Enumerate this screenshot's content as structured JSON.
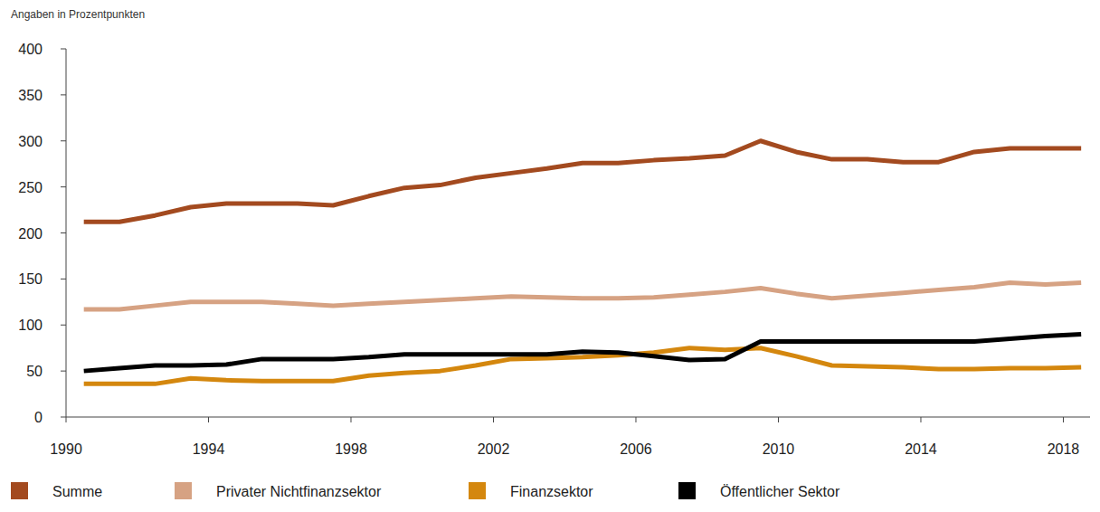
{
  "chart_data": {
    "type": "line",
    "y_label": "Angaben in Prozentpunkten",
    "x": [
      1990.5,
      1991.5,
      1992.5,
      1993.5,
      1994.5,
      1995.5,
      1996.5,
      1997.5,
      1998.5,
      1999.5,
      2000.5,
      2001.5,
      2002.5,
      2003.5,
      2004.5,
      2005.5,
      2006.5,
      2007.5,
      2008.5,
      2009.5,
      2010.5,
      2011.5,
      2012.5,
      2013.5,
      2014.5,
      2015.5,
      2016.5,
      2017.5,
      2018.5
    ],
    "series": [
      {
        "name": "Summe",
        "color": "#a34a1f",
        "values": [
          212,
          212,
          219,
          228,
          232,
          232,
          232,
          230,
          240,
          249,
          252,
          260,
          265,
          270,
          276,
          276,
          279,
          281,
          284,
          300,
          288,
          280,
          280,
          277,
          277,
          288,
          292,
          292,
          292
        ]
      },
      {
        "name": "Privater Nichtfinanzsektor",
        "color": "#d6a283",
        "values": [
          117,
          117,
          121,
          125,
          125,
          125,
          123,
          121,
          123,
          125,
          127,
          129,
          131,
          130,
          129,
          129,
          130,
          133,
          136,
          140,
          134,
          129,
          132,
          135,
          138,
          141,
          146,
          144,
          146
        ]
      },
      {
        "name": "Finanzsektor",
        "color": "#d4870e",
        "values": [
          36,
          36,
          36,
          42,
          40,
          39,
          39,
          39,
          45,
          48,
          50,
          56,
          63,
          64,
          65,
          67,
          70,
          75,
          73,
          75,
          66,
          56,
          55,
          54,
          52,
          52,
          53,
          53,
          54
        ]
      },
      {
        "name": "Öffentlicher Sektor",
        "color": "#000000",
        "values": [
          50,
          53,
          56,
          56,
          57,
          63,
          63,
          63,
          65,
          68,
          68,
          68,
          68,
          68,
          71,
          70,
          66,
          62,
          63,
          82,
          82,
          82,
          82,
          82,
          82,
          82,
          85,
          88,
          90
        ]
      }
    ],
    "xlim": [
      1990,
      2018.75
    ],
    "xticks": [
      1990,
      1994,
      1998,
      2002,
      2006,
      2010,
      2014,
      2018
    ],
    "ylim": [
      0,
      400
    ],
    "yticks": [
      0,
      50,
      100,
      150,
      200,
      250,
      300,
      350,
      400
    ],
    "grid": false,
    "legend": "bottom"
  }
}
